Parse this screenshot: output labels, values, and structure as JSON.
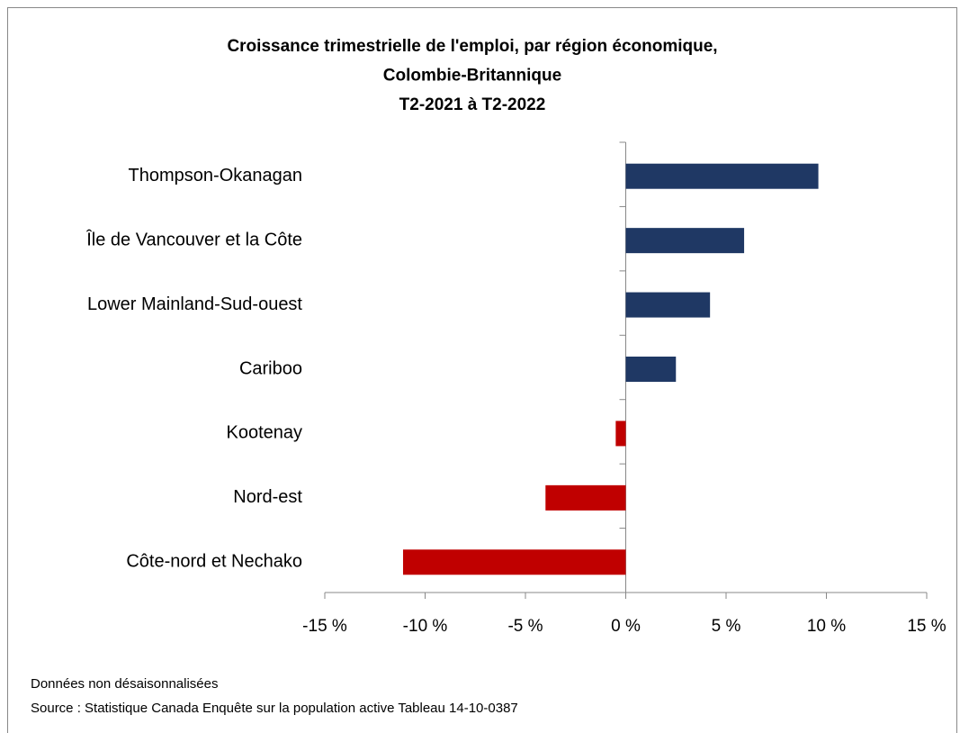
{
  "chart_data": {
    "type": "barh",
    "title": [
      "Croissance trimestrielle de l'emploi, par région économique,",
      "Colombie-Britannique",
      "T2-2021 à T2-2022"
    ],
    "categories": [
      "Thompson-Okanagan",
      "Île de Vancouver et la Côte",
      "Lower Mainland-Sud-ouest",
      "Cariboo",
      "Kootenay",
      "Nord-est",
      "Côte-nord et Nechako"
    ],
    "values": [
      9.6,
      5.9,
      4.2,
      2.5,
      -0.5,
      -4.0,
      -11.1
    ],
    "colors": [
      "#1f3864",
      "#1f3864",
      "#1f3864",
      "#1f3864",
      "#c00000",
      "#c00000",
      "#c00000"
    ],
    "xlim": [
      -15,
      15
    ],
    "xticks": [
      {
        "value": -15,
        "label": "-15 %"
      },
      {
        "value": -10,
        "label": "-10 %"
      },
      {
        "value": -5,
        "label": "-5 %"
      },
      {
        "value": 0,
        "label": "0 %"
      },
      {
        "value": 5,
        "label": "5 %"
      },
      {
        "value": 10,
        "label": "10 %"
      },
      {
        "value": 15,
        "label": "15 %"
      }
    ],
    "notes": [
      "Données non désaisonnalisées",
      "Source : Statistique Canada Enquête sur la population active Tableau 14-10-0387"
    ]
  }
}
